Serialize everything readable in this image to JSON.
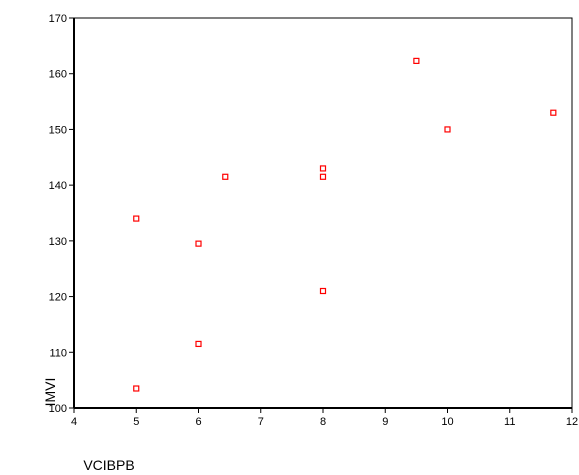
{
  "chart_data": {
    "type": "scatter",
    "title": "",
    "xlabel": "VCIBPB",
    "ylabel": "IMVI",
    "xlim": [
      4,
      12
    ],
    "ylim": [
      100,
      170
    ],
    "xticks": [
      4,
      5,
      6,
      7,
      8,
      9,
      10,
      11,
      12
    ],
    "yticks": [
      100,
      110,
      120,
      130,
      140,
      150,
      160,
      170
    ],
    "grid": false,
    "legend": "none",
    "marker": "open-square",
    "marker_color": "#ff0000",
    "points": [
      {
        "x": 5,
        "y": 103.5
      },
      {
        "x": 5,
        "y": 134
      },
      {
        "x": 6,
        "y": 111.5
      },
      {
        "x": 6,
        "y": 129.5
      },
      {
        "x": 6.43,
        "y": 141.5
      },
      {
        "x": 8,
        "y": 121
      },
      {
        "x": 8,
        "y": 141.5
      },
      {
        "x": 8,
        "y": 143
      },
      {
        "x": 9.5,
        "y": 162.3
      },
      {
        "x": 10,
        "y": 150
      },
      {
        "x": 11.7,
        "y": 153
      }
    ]
  }
}
